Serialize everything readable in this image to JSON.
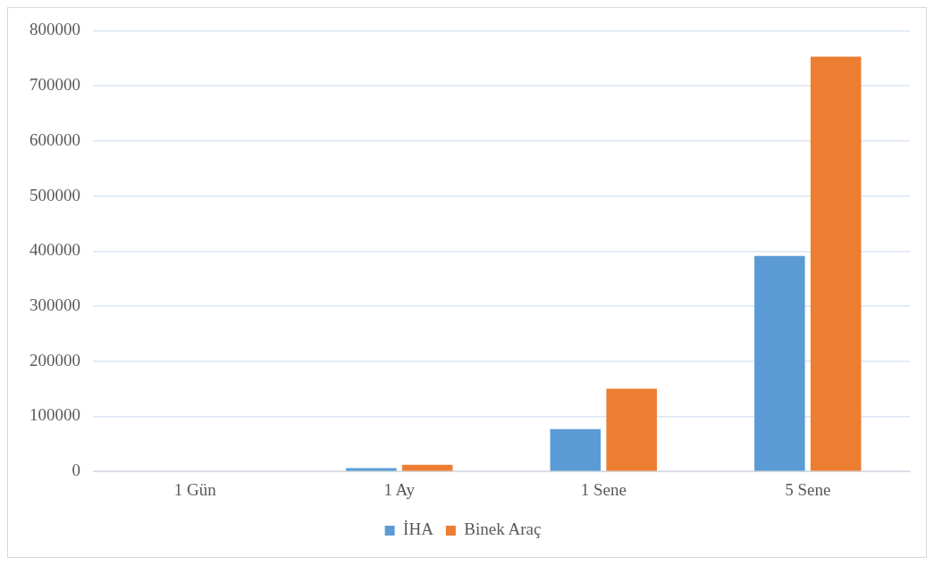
{
  "chart_data": {
    "type": "bar",
    "categories": [
      "1 Gün",
      "1 Ay",
      "1 Sene",
      "5 Sene"
    ],
    "series": [
      {
        "name": "İHA",
        "color": "#5b9bd5",
        "values": [
          0,
          6000,
          77000,
          391000
        ]
      },
      {
        "name": "Binek Araç",
        "color": "#ed7d31",
        "values": [
          0,
          12000,
          150000,
          753000
        ]
      }
    ],
    "ylim": [
      0,
      800000
    ],
    "yticks": [
      0,
      100000,
      200000,
      300000,
      400000,
      500000,
      600000,
      700000,
      800000
    ],
    "grid": "y",
    "legend": "bottom"
  }
}
